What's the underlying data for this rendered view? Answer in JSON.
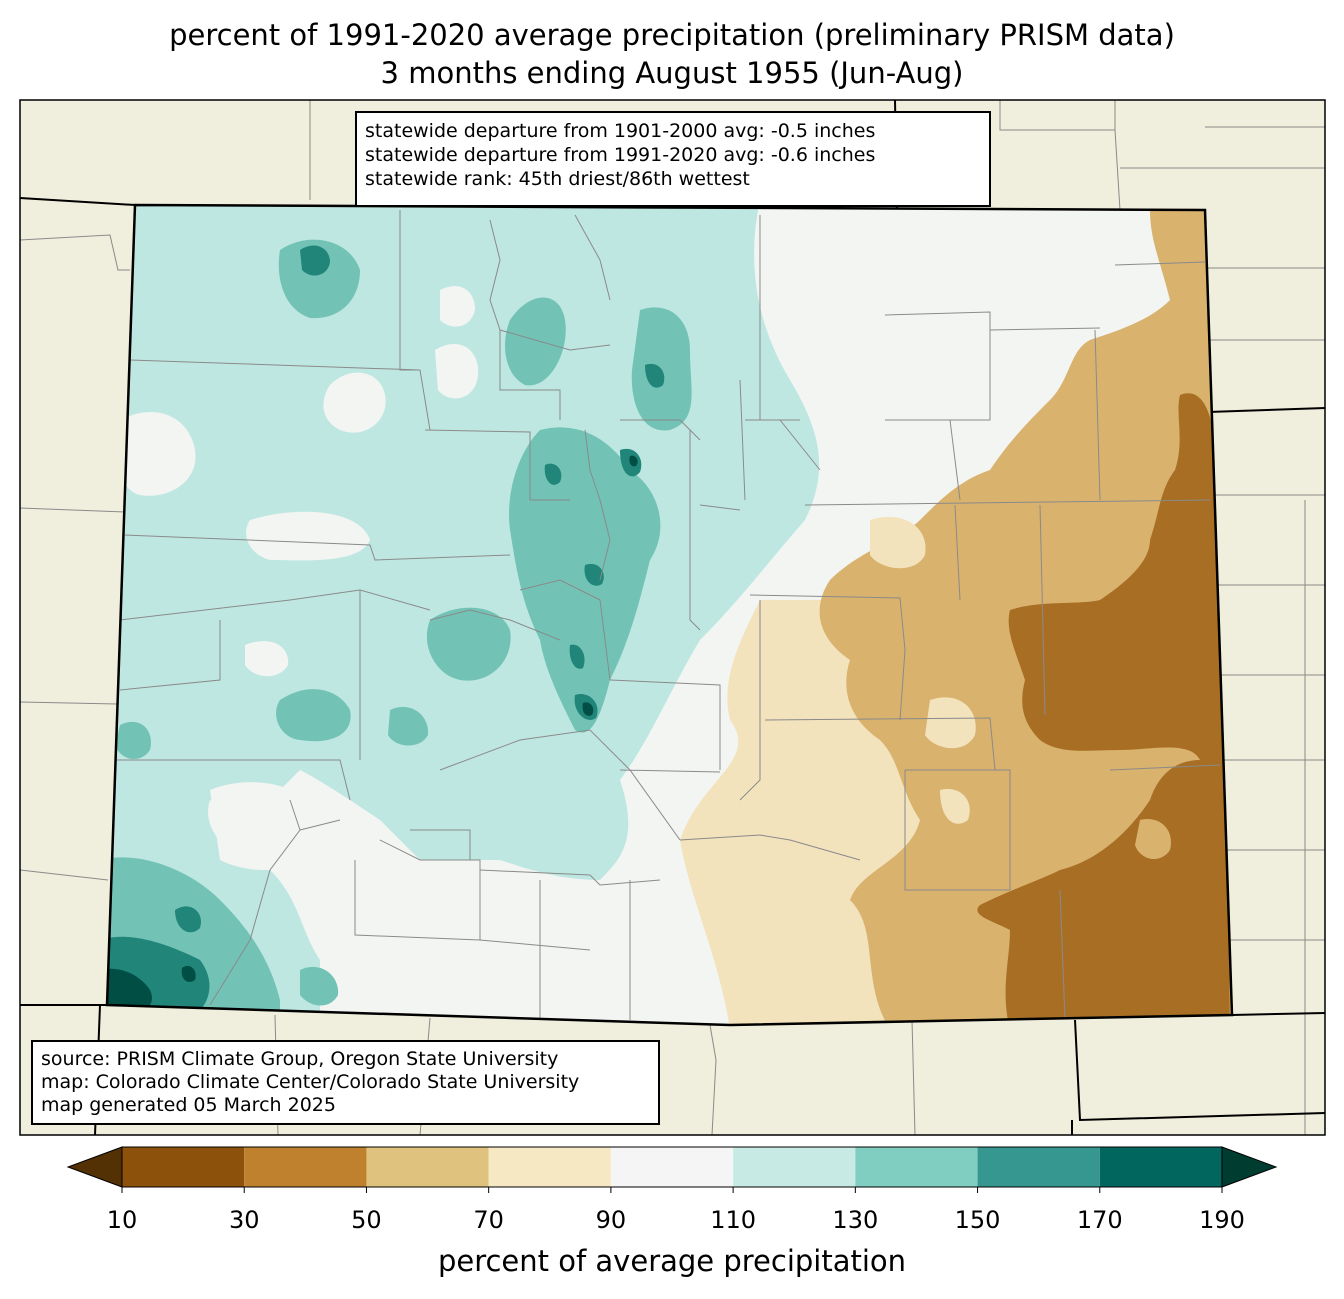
{
  "title": {
    "line1": "percent of 1991-2020 average precipitation (preliminary PRISM data)",
    "line2": "3 months ending August 1955 (Jun-Aug)"
  },
  "stats": {
    "line1": "statewide departure from 1901-2000 avg: -0.5 inches",
    "line2": "statewide departure from 1991-2020 avg: -0.6 inches",
    "line3": "statewide rank: 45th driest/86th wettest"
  },
  "source": {
    "line1": "source: PRISM Climate Group, Oregon State University",
    "line2": "map: Colorado Climate Center/Colorado State University",
    "line3": "map generated 05 March 2025"
  },
  "colorbar": {
    "label": "percent of average precipitation",
    "ticks": [
      "10",
      "30",
      "50",
      "70",
      "90",
      "110",
      "130",
      "150",
      "170",
      "190"
    ],
    "colors": [
      "#543005",
      "#8c510a",
      "#bf812d",
      "#dfc27d",
      "#f6e8c3",
      "#f5f5f5",
      "#c7eae5",
      "#80cdc1",
      "#35978f",
      "#01665e",
      "#003c30"
    ]
  },
  "colors": {
    "background_land": "#f0eedc",
    "brown_dark": "#a86f24",
    "brown_mid": "#d9b26e",
    "tan_light": "#f3e3bd",
    "neutral": "#f3f5f3",
    "teal_light": "#bfe7e1",
    "teal_mid": "#72c3b6",
    "teal_dark": "#218579",
    "teal_darkest": "#014f44"
  }
}
